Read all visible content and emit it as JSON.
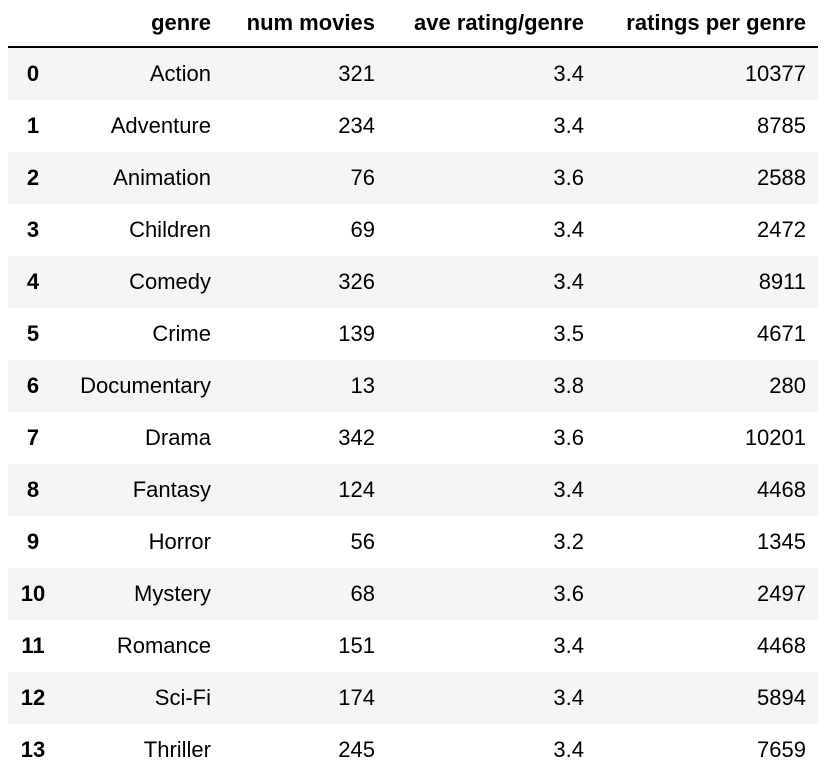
{
  "table": {
    "columns": {
      "index": "",
      "genre": "genre",
      "num_movies": "num movies",
      "ave_rating": "ave rating/genre",
      "ratings_per_genre": "ratings per genre"
    },
    "rows": [
      {
        "index": "0",
        "genre": "Action",
        "num_movies": "321",
        "ave_rating": "3.4",
        "ratings_per_genre": "10377"
      },
      {
        "index": "1",
        "genre": "Adventure",
        "num_movies": "234",
        "ave_rating": "3.4",
        "ratings_per_genre": "8785"
      },
      {
        "index": "2",
        "genre": "Animation",
        "num_movies": "76",
        "ave_rating": "3.6",
        "ratings_per_genre": "2588"
      },
      {
        "index": "3",
        "genre": "Children",
        "num_movies": "69",
        "ave_rating": "3.4",
        "ratings_per_genre": "2472"
      },
      {
        "index": "4",
        "genre": "Comedy",
        "num_movies": "326",
        "ave_rating": "3.4",
        "ratings_per_genre": "8911"
      },
      {
        "index": "5",
        "genre": "Crime",
        "num_movies": "139",
        "ave_rating": "3.5",
        "ratings_per_genre": "4671"
      },
      {
        "index": "6",
        "genre": "Documentary",
        "num_movies": "13",
        "ave_rating": "3.8",
        "ratings_per_genre": "280"
      },
      {
        "index": "7",
        "genre": "Drama",
        "num_movies": "342",
        "ave_rating": "3.6",
        "ratings_per_genre": "10201"
      },
      {
        "index": "8",
        "genre": "Fantasy",
        "num_movies": "124",
        "ave_rating": "3.4",
        "ratings_per_genre": "4468"
      },
      {
        "index": "9",
        "genre": "Horror",
        "num_movies": "56",
        "ave_rating": "3.2",
        "ratings_per_genre": "1345"
      },
      {
        "index": "10",
        "genre": "Mystery",
        "num_movies": "68",
        "ave_rating": "3.6",
        "ratings_per_genre": "2497"
      },
      {
        "index": "11",
        "genre": "Romance",
        "num_movies": "151",
        "ave_rating": "3.4",
        "ratings_per_genre": "4468"
      },
      {
        "index": "12",
        "genre": "Sci-Fi",
        "num_movies": "174",
        "ave_rating": "3.4",
        "ratings_per_genre": "5894"
      },
      {
        "index": "13",
        "genre": "Thriller",
        "num_movies": "245",
        "ave_rating": "3.4",
        "ratings_per_genre": "7659"
      }
    ]
  }
}
